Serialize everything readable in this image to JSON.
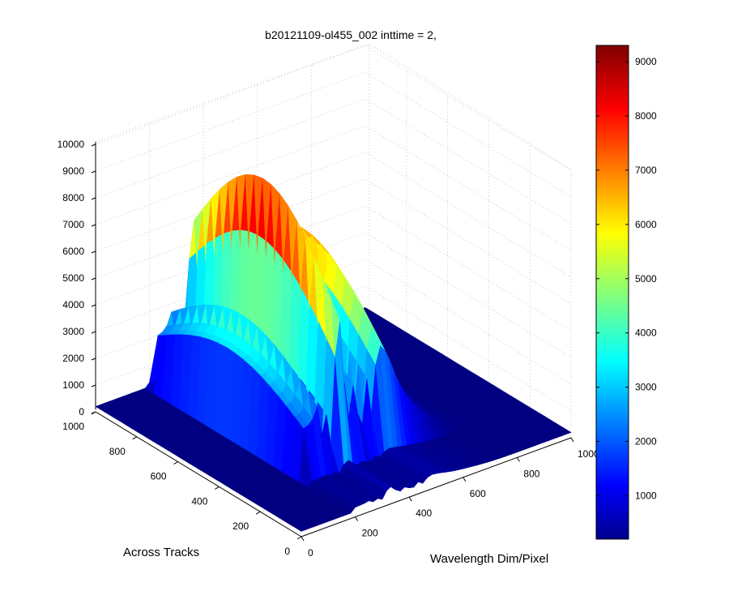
{
  "chart_data": {
    "type": "surface",
    "title": "b20121109-ol455_002 inttime = 2,",
    "xlabel": "Wavelength Dim/Pixel",
    "ylabel": "Across Tracks",
    "zlabel": "",
    "xlim": [
      0,
      1000
    ],
    "ylim": [
      0,
      1000
    ],
    "zlim": [
      0,
      10000
    ],
    "x_ticks": [
      "0",
      "200",
      "400",
      "600",
      "800",
      "1000"
    ],
    "y_ticks": [
      "0",
      "200",
      "400",
      "600",
      "800",
      "1000"
    ],
    "z_ticks": [
      "0",
      "1000",
      "2000",
      "3000",
      "4000",
      "5000",
      "6000",
      "7000",
      "8000",
      "9000",
      "10000"
    ],
    "grid": true,
    "colormap": "jet",
    "colorbar": {
      "range": [
        200,
        9300
      ],
      "ticks": [
        "1000",
        "2000",
        "3000",
        "4000",
        "5000",
        "6000",
        "7000",
        "8000",
        "9000"
      ]
    },
    "peak_value": 9300,
    "description_points": [
      {
        "wavelength": 0,
        "across_track": 1000,
        "value": 200
      }
    ]
  }
}
